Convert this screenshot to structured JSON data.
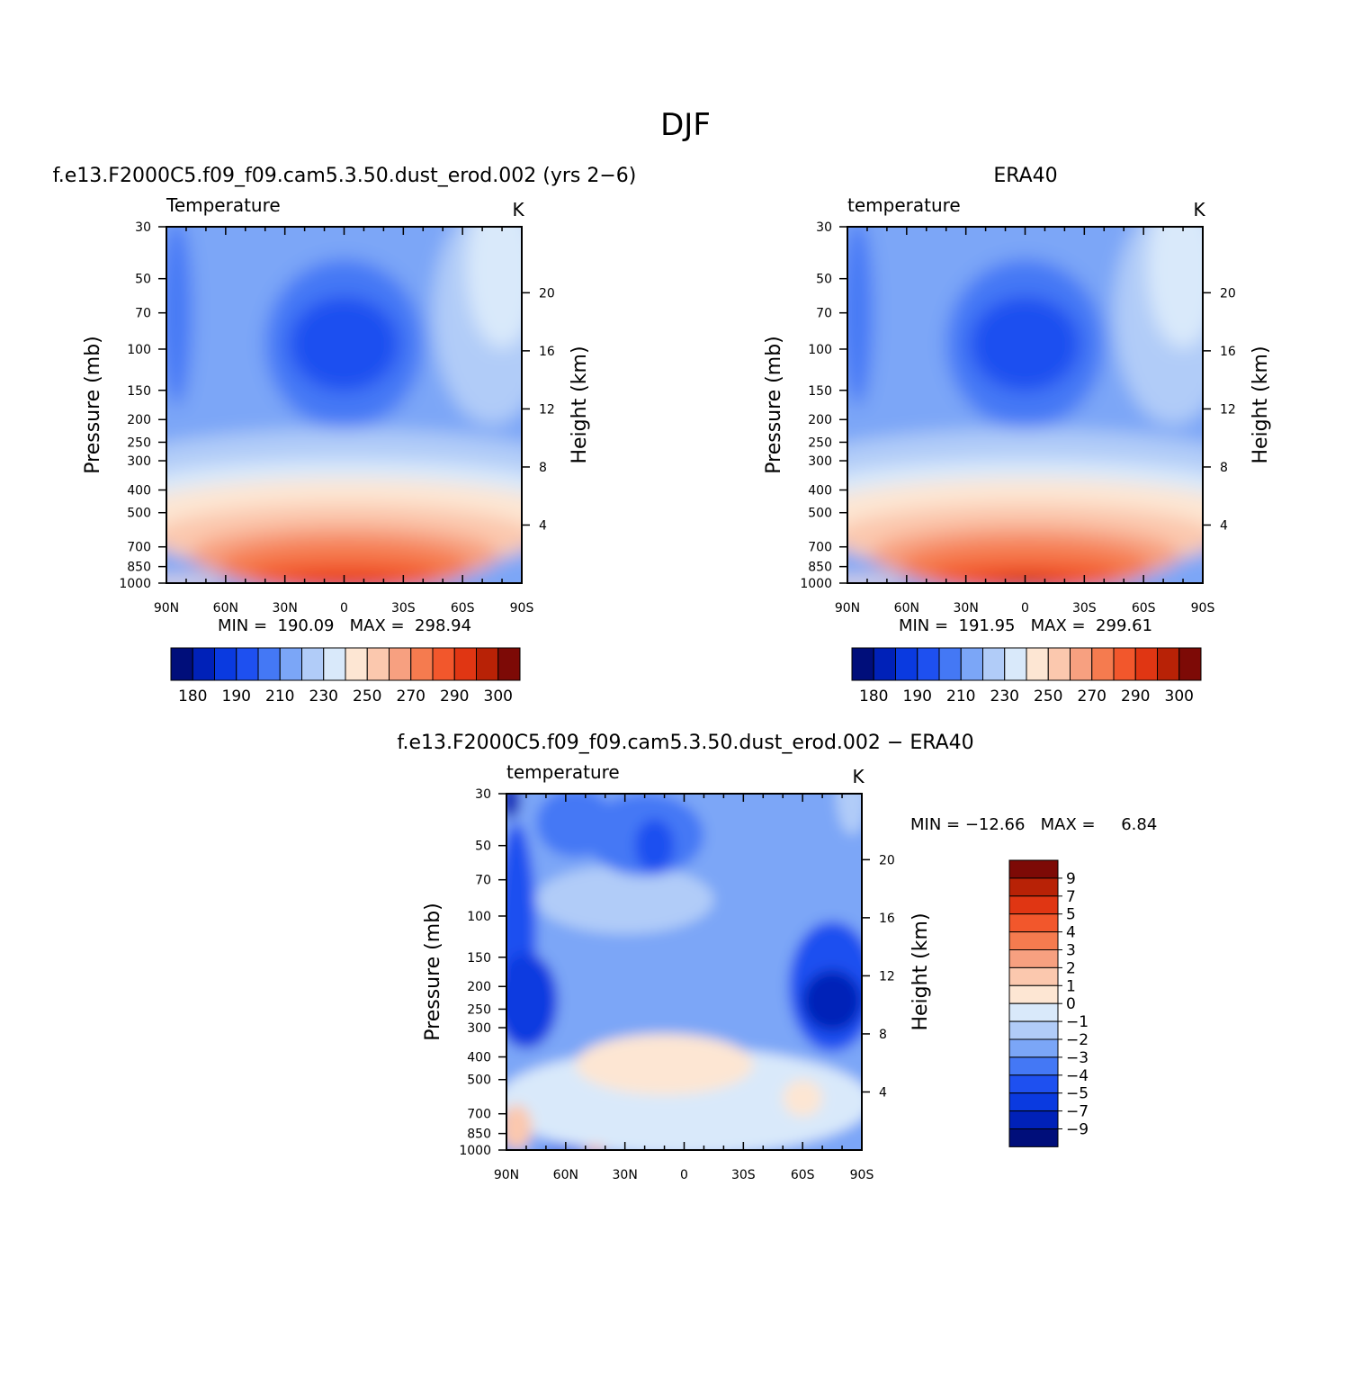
{
  "figure": {
    "title": "DJF",
    "colors": {
      "temperature_levels": [
        "#000e7a",
        "#0021b8",
        "#0a3ae0",
        "#1e50f0",
        "#4478f5",
        "#7ba6f7",
        "#b1ccf8",
        "#d9e9fa",
        "#fde6d3",
        "#fbc8ae",
        "#f7a080",
        "#f57b4f",
        "#f2572c",
        "#e03613",
        "#b82206",
        "#7d0a06"
      ],
      "difference_levels": [
        "#000e7a",
        "#0021b8",
        "#0a3ae0",
        "#1e50f0",
        "#4478f5",
        "#7ba6f7",
        "#b1ccf8",
        "#d9e9fa",
        "#fde6d3",
        "#fbc8ae",
        "#f7a080",
        "#f57b4f",
        "#f2572c",
        "#e03613",
        "#b82206",
        "#7d0a06"
      ]
    }
  },
  "chart_data": [
    {
      "type": "heatmap",
      "title": "f.e13.F2000C5.f09_f09.cam5.3.50.dust_erod.002 (yrs 2−6)",
      "variable_label": "Temperature",
      "units": "K",
      "ylabel": "Pressure (mb)",
      "ylabel_right": "Height (km)",
      "x_ticks": [
        "90N",
        "60N",
        "30N",
        "0",
        "30S",
        "60S",
        "90S"
      ],
      "x_range": [
        90,
        -90
      ],
      "y_ticks": [
        30,
        50,
        70,
        100,
        150,
        200,
        250,
        300,
        400,
        500,
        700,
        850,
        1000
      ],
      "y_range": [
        1000,
        30
      ],
      "y_scale": "log",
      "right_ticks": [
        4,
        8,
        12,
        16,
        20
      ],
      "min_max_text": "MIN =  190.09   MAX =  298.94",
      "min": 190.09,
      "max": 298.94,
      "colorbar": {
        "labels": [
          "180",
          "190",
          "210",
          "230",
          "250",
          "270",
          "290",
          "300"
        ],
        "levels": [
          180,
          185,
          190,
          200,
          210,
          220,
          230,
          240,
          250,
          260,
          270,
          280,
          290,
          295,
          300
        ],
        "orientation": "horizontal"
      }
    },
    {
      "type": "heatmap",
      "title": "ERA40",
      "variable_label": "temperature",
      "units": "K",
      "ylabel": "Pressure (mb)",
      "ylabel_right": "Height (km)",
      "x_ticks": [
        "90N",
        "60N",
        "30N",
        "0",
        "30S",
        "60S",
        "90S"
      ],
      "x_range": [
        90,
        -90
      ],
      "y_ticks": [
        30,
        50,
        70,
        100,
        150,
        200,
        250,
        300,
        400,
        500,
        700,
        850,
        1000
      ],
      "y_range": [
        1000,
        30
      ],
      "y_scale": "log",
      "right_ticks": [
        4,
        8,
        12,
        16,
        20
      ],
      "min_max_text": "MIN =  191.95   MAX =  299.61",
      "min": 191.95,
      "max": 299.61,
      "colorbar": {
        "labels": [
          "180",
          "190",
          "210",
          "230",
          "250",
          "270",
          "290",
          "300"
        ],
        "levels": [
          180,
          185,
          190,
          200,
          210,
          220,
          230,
          240,
          250,
          260,
          270,
          280,
          290,
          295,
          300
        ],
        "orientation": "horizontal"
      }
    },
    {
      "type": "heatmap",
      "title": "f.e13.F2000C5.f09_f09.cam5.3.50.dust_erod.002 − ERA40",
      "variable_label": "temperature",
      "units": "K",
      "ylabel": "Pressure (mb)",
      "ylabel_right": "Height (km)",
      "x_ticks": [
        "90N",
        "60N",
        "30N",
        "0",
        "30S",
        "60S",
        "90S"
      ],
      "x_range": [
        90,
        -90
      ],
      "y_ticks": [
        30,
        50,
        70,
        100,
        150,
        200,
        250,
        300,
        400,
        500,
        700,
        850,
        1000
      ],
      "y_range": [
        1000,
        30
      ],
      "y_scale": "log",
      "right_ticks": [
        4,
        8,
        12,
        16,
        20
      ],
      "min_max_text": "MIN = −12.66   MAX =     6.84",
      "min": -12.66,
      "max": 6.84,
      "colorbar": {
        "labels": [
          "9",
          "7",
          "5",
          "4",
          "3",
          "2",
          "1",
          "0",
          "−1",
          "−2",
          "−3",
          "−4",
          "−5",
          "−7",
          "−9"
        ],
        "levels": [
          9,
          7,
          5,
          4,
          3,
          2,
          1,
          0,
          -1,
          -2,
          -3,
          -4,
          -5,
          -7,
          -9
        ],
        "orientation": "vertical"
      }
    }
  ]
}
